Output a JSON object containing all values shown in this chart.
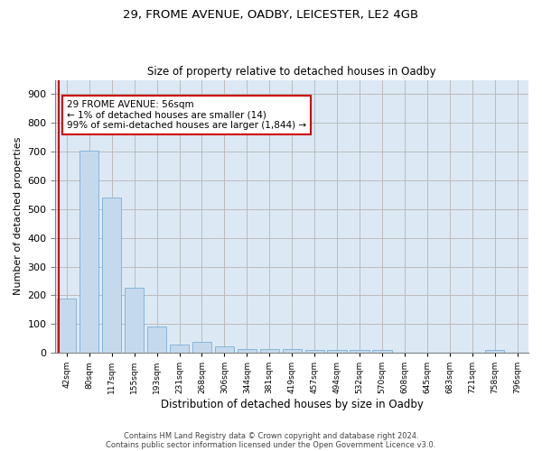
{
  "title_line1": "29, FROME AVENUE, OADBY, LEICESTER, LE2 4GB",
  "title_line2": "Size of property relative to detached houses in Oadby",
  "xlabel": "Distribution of detached houses by size in Oadby",
  "ylabel": "Number of detached properties",
  "categories": [
    "42sqm",
    "80sqm",
    "117sqm",
    "155sqm",
    "193sqm",
    "231sqm",
    "268sqm",
    "306sqm",
    "344sqm",
    "381sqm",
    "419sqm",
    "457sqm",
    "494sqm",
    "532sqm",
    "570sqm",
    "608sqm",
    "645sqm",
    "683sqm",
    "721sqm",
    "758sqm",
    "796sqm"
  ],
  "values": [
    190,
    705,
    540,
    225,
    92,
    27,
    38,
    23,
    14,
    13,
    12,
    10,
    10,
    10,
    8,
    0,
    0,
    0,
    0,
    9,
    0
  ],
  "bar_color": "#c5d9ed",
  "bar_edge_color": "#7bafd4",
  "highlight_line_color": "#cc0000",
  "annotation_text": "29 FROME AVENUE: 56sqm\n← 1% of detached houses are smaller (14)\n99% of semi-detached houses are larger (1,844) →",
  "annotation_box_color": "#ffffff",
  "annotation_box_edge_color": "#cc0000",
  "ylim": [
    0,
    950
  ],
  "yticks": [
    0,
    100,
    200,
    300,
    400,
    500,
    600,
    700,
    800,
    900
  ],
  "footer_line1": "Contains HM Land Registry data © Crown copyright and database right 2024.",
  "footer_line2": "Contains public sector information licensed under the Open Government Licence v3.0.",
  "background_color": "#ffffff",
  "plot_bg_color": "#dce9f5",
  "grid_color": "#bbbbbb"
}
